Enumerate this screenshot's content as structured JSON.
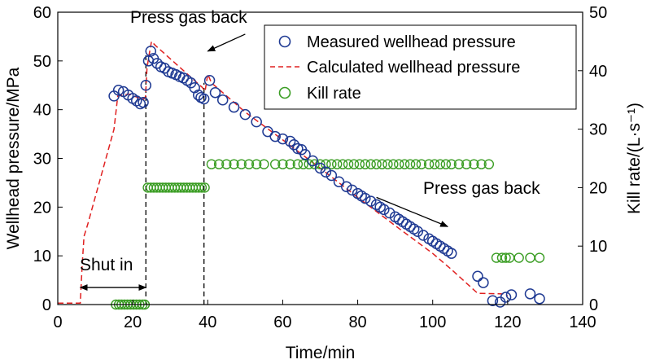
{
  "chart_data": {
    "type": "scatter",
    "xlabel": "Time/min",
    "ylabel_left": "Wellhead pressure/MPa",
    "ylabel_right": "Kill rate/(L·s⁻¹)",
    "xlim": [
      0,
      140
    ],
    "ylim_left": [
      0,
      60
    ],
    "ylim_right": [
      0,
      50
    ],
    "x_ticks": [
      0,
      20,
      40,
      60,
      80,
      100,
      120,
      140
    ],
    "y_left_ticks": [
      0,
      10,
      20,
      30,
      40,
      50,
      60
    ],
    "y_right_ticks": [
      0,
      10,
      20,
      30,
      40,
      50
    ],
    "grid": false,
    "legend_position": "top-right",
    "series": [
      {
        "name": "Measured wellhead pressure",
        "axis": "left",
        "style": "circle",
        "color": "#1f3a93",
        "points": [
          [
            15,
            42.8
          ],
          [
            16.2,
            44
          ],
          [
            17.5,
            43.7
          ],
          [
            18.8,
            43
          ],
          [
            20,
            42.3
          ],
          [
            21,
            41.8
          ],
          [
            22,
            41.2
          ],
          [
            22.8,
            41.5
          ],
          [
            23.5,
            45
          ],
          [
            24.2,
            50
          ],
          [
            24.8,
            52
          ],
          [
            25.5,
            50.5
          ],
          [
            26.5,
            49.5
          ],
          [
            27.5,
            48.8
          ],
          [
            28.5,
            48.5
          ],
          [
            29.5,
            47.8
          ],
          [
            30.5,
            47.5
          ],
          [
            31.5,
            47.2
          ],
          [
            32.5,
            46.8
          ],
          [
            33.5,
            46.5
          ],
          [
            34.5,
            46
          ],
          [
            35.5,
            45.5
          ],
          [
            36.5,
            44.5
          ],
          [
            37.5,
            43
          ],
          [
            38.2,
            42.5
          ],
          [
            39,
            42.2
          ],
          [
            40.5,
            46
          ],
          [
            42,
            43.5
          ],
          [
            44,
            42
          ],
          [
            47,
            40.5
          ],
          [
            50,
            39
          ],
          [
            53,
            37.5
          ],
          [
            56,
            35.5
          ],
          [
            58,
            34.5
          ],
          [
            60,
            34
          ],
          [
            62,
            33.5
          ],
          [
            63,
            32.8
          ],
          [
            64,
            32
          ],
          [
            65,
            31.8
          ],
          [
            66,
            30.8
          ],
          [
            68,
            29.5
          ],
          [
            70,
            28
          ],
          [
            71.5,
            27.2
          ],
          [
            73,
            26.5
          ],
          [
            75,
            25.2
          ],
          [
            77,
            24.2
          ],
          [
            78.5,
            23.5
          ],
          [
            80,
            22.8
          ],
          [
            81,
            22.3
          ],
          [
            82,
            21.8
          ],
          [
            83.5,
            21.2
          ],
          [
            85,
            20.5
          ],
          [
            86,
            20
          ],
          [
            87,
            19.5
          ],
          [
            88.5,
            18.8
          ],
          [
            90,
            18
          ],
          [
            91,
            17.5
          ],
          [
            92,
            17
          ],
          [
            93,
            16.5
          ],
          [
            94,
            16
          ],
          [
            95,
            15.5
          ],
          [
            96,
            15
          ],
          [
            97.5,
            14.2
          ],
          [
            99,
            13.5
          ],
          [
            100,
            13
          ],
          [
            101,
            12.5
          ],
          [
            102,
            12
          ],
          [
            103,
            11.5
          ],
          [
            104,
            11
          ],
          [
            105,
            10.5
          ],
          [
            112,
            5.8
          ],
          [
            113.5,
            4.5
          ],
          [
            116,
            0.8
          ],
          [
            118,
            0.5
          ],
          [
            119.5,
            1.5
          ],
          [
            121,
            2
          ],
          [
            126,
            2.2
          ],
          [
            128.5,
            1.2
          ]
        ]
      },
      {
        "name": "Calculated wellhead pressure",
        "axis": "left",
        "style": "dashed-line",
        "color": "#e02020",
        "points": [
          [
            0,
            0.3
          ],
          [
            6,
            0.3
          ],
          [
            6.5,
            8
          ],
          [
            7,
            14
          ],
          [
            8,
            16.5
          ],
          [
            15,
            36
          ],
          [
            16,
            42.8
          ],
          [
            19,
            43.2
          ],
          [
            21,
            42.6
          ],
          [
            23,
            42.2
          ],
          [
            23.4,
            42.7
          ],
          [
            23.8,
            48.5
          ],
          [
            24.3,
            51
          ],
          [
            25,
            54
          ],
          [
            26,
            53.2
          ],
          [
            38.5,
            44.6
          ],
          [
            39.3,
            43.8
          ],
          [
            40,
            47.3
          ],
          [
            41,
            45.5
          ],
          [
            50,
            39.5
          ],
          [
            60,
            33.8
          ],
          [
            70,
            28
          ],
          [
            80,
            22
          ],
          [
            90,
            16.2
          ],
          [
            100,
            10.5
          ],
          [
            105,
            7.2
          ],
          [
            110,
            3.7
          ],
          [
            112,
            2.3
          ],
          [
            119,
            2.2
          ],
          [
            120,
            1.8
          ]
        ]
      },
      {
        "name": "Kill rate",
        "axis": "right",
        "style": "circle",
        "color": "#3a9d23",
        "points": [
          [
            15.5,
            0
          ],
          [
            16.3,
            0
          ],
          [
            17,
            0
          ],
          [
            17.8,
            0
          ],
          [
            18.6,
            0
          ],
          [
            19.4,
            0
          ],
          [
            20.2,
            0
          ],
          [
            21,
            0
          ],
          [
            21.8,
            0
          ],
          [
            22.6,
            0
          ],
          [
            23.2,
            0
          ],
          [
            24,
            20
          ],
          [
            24.8,
            20
          ],
          [
            25.6,
            20
          ],
          [
            26.4,
            20
          ],
          [
            27.2,
            20
          ],
          [
            28,
            20
          ],
          [
            28.8,
            20
          ],
          [
            29.6,
            20
          ],
          [
            30.4,
            20
          ],
          [
            31.2,
            20
          ],
          [
            32,
            20
          ],
          [
            32.8,
            20
          ],
          [
            33.6,
            20
          ],
          [
            34.4,
            20
          ],
          [
            35.2,
            20
          ],
          [
            36,
            20
          ],
          [
            36.8,
            20
          ],
          [
            37.6,
            20
          ],
          [
            38.4,
            20
          ],
          [
            39.2,
            20
          ],
          [
            41,
            24
          ],
          [
            43,
            24
          ],
          [
            45,
            24
          ],
          [
            47,
            24
          ],
          [
            49,
            24
          ],
          [
            51,
            24
          ],
          [
            53,
            24
          ],
          [
            55,
            24
          ],
          [
            58,
            24
          ],
          [
            60,
            24
          ],
          [
            62,
            24
          ],
          [
            64,
            24
          ],
          [
            65.5,
            24
          ],
          [
            67,
            24
          ],
          [
            68.5,
            24
          ],
          [
            70,
            24
          ],
          [
            71.5,
            24
          ],
          [
            73,
            24
          ],
          [
            74.5,
            24
          ],
          [
            76,
            24
          ],
          [
            77.5,
            24
          ],
          [
            79,
            24
          ],
          [
            80.5,
            24
          ],
          [
            82,
            24
          ],
          [
            83.5,
            24
          ],
          [
            85,
            24
          ],
          [
            86.5,
            24
          ],
          [
            88,
            24
          ],
          [
            89.5,
            24
          ],
          [
            91,
            24
          ],
          [
            92.5,
            24
          ],
          [
            94,
            24
          ],
          [
            95.5,
            24
          ],
          [
            97,
            24
          ],
          [
            99,
            24
          ],
          [
            100.5,
            24
          ],
          [
            102,
            24
          ],
          [
            103.5,
            24
          ],
          [
            105,
            24
          ],
          [
            107,
            24
          ],
          [
            109,
            24
          ],
          [
            111,
            24
          ],
          [
            113,
            24
          ],
          [
            115,
            24
          ],
          [
            117,
            8
          ],
          [
            118.5,
            8
          ],
          [
            119.5,
            8
          ],
          [
            120.5,
            8
          ],
          [
            123,
            8
          ],
          [
            126,
            8
          ],
          [
            128.5,
            8
          ]
        ]
      }
    ],
    "reference_lines": [
      {
        "x": 23.5,
        "from": 0,
        "to": 52
      },
      {
        "x": 39,
        "from": 0,
        "to": 45.5
      }
    ],
    "annotations": [
      {
        "text": "Press gas back",
        "anchor_x": 28,
        "anchor_y": 59,
        "arrow_to": [
          40,
          52
        ]
      },
      {
        "text": "Press gas back",
        "anchor_x": 107,
        "anchor_y": 24,
        "arrow_to": [
          104,
          16
        ]
      },
      {
        "text": "Shut in",
        "anchor_x": 14,
        "anchor_y": 7.5,
        "span": [
          6,
          23.5
        ],
        "span_y": 3.5
      }
    ]
  }
}
